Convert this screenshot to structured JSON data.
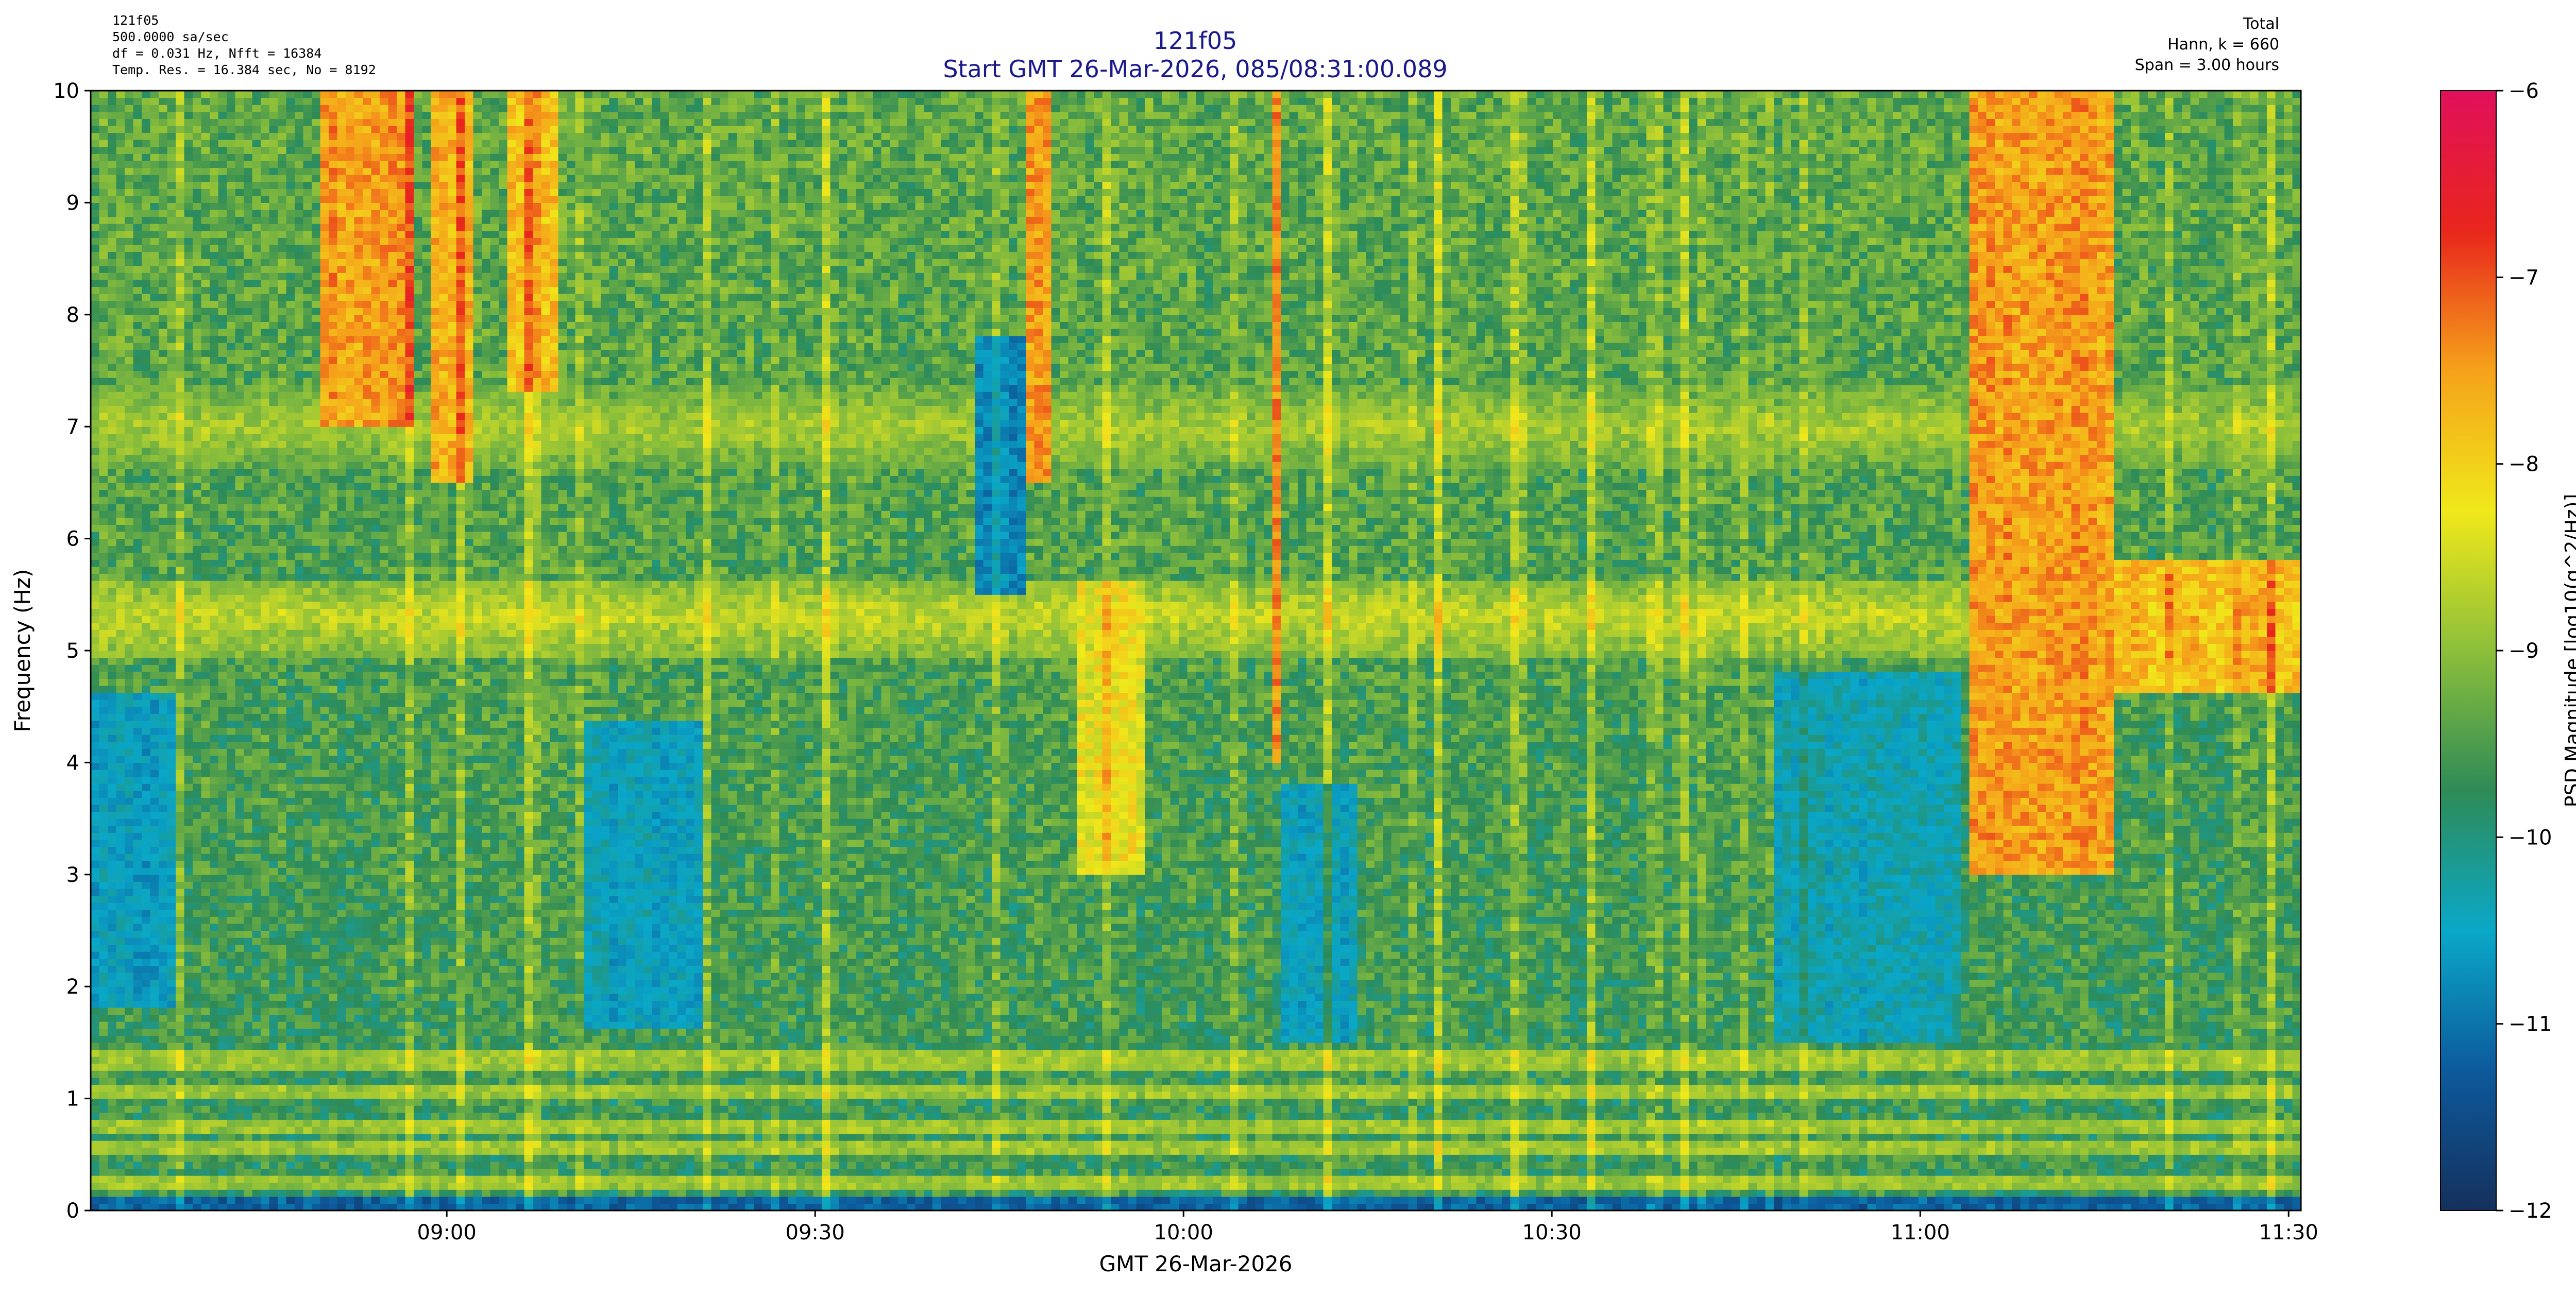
{
  "header": {
    "left_lines": [
      "121f05",
      "500.0000 sa/sec",
      "df = 0.031 Hz,  Nfft = 16384",
      "Temp. Res. = 16.384 sec, No = 8192"
    ],
    "right_lines": [
      "Total",
      "Hann, k = 660",
      "Span = 3.00 hours"
    ]
  },
  "colors": {
    "title": "#1a1a8c",
    "colormap": [
      "#15305c",
      "#0d5a9c",
      "#0aa8c8",
      "#2e8b57",
      "#8cbf3a",
      "#f0e81a",
      "#f5a21a",
      "#e8261c",
      "#e0105a"
    ]
  },
  "chart_data": {
    "type": "heatmap",
    "title": "121f05",
    "subtitle": "Start GMT 26-Mar-2026, 085/08:31:00.089",
    "xlabel": "GMT 26-Mar-2026",
    "ylabel": "Frequency (Hz)",
    "x_ticks": [
      "09:00",
      "09:30",
      "10:00",
      "10:30",
      "11:00",
      "11:30"
    ],
    "x_tick_minutes_from_0800": [
      60,
      90,
      120,
      150,
      180,
      210
    ],
    "xlim_minutes_from_0800": [
      31.0,
      211.0
    ],
    "y_ticks": [
      0,
      1,
      2,
      3,
      4,
      5,
      6,
      7,
      8,
      9,
      10
    ],
    "ylim": [
      0,
      10
    ],
    "colorbar": {
      "label": "PSD Magnitude [log10(g^2/Hz)]",
      "ticks": [
        -6,
        -7,
        -8,
        -9,
        -10,
        -11,
        -12
      ],
      "range": [
        -12,
        -6
      ]
    },
    "background_level": -9.8,
    "bands": [
      {
        "name": "lines_low",
        "freqs": [
          0.25,
          0.55,
          0.75,
          1.05,
          1.35
        ],
        "level": -9.0
      },
      {
        "name": "band_5hz",
        "center": 5.3,
        "width": 0.35,
        "level": -8.7
      },
      {
        "name": "band_7hz",
        "center": 7.0,
        "width": 0.4,
        "level": -8.9
      }
    ],
    "blobs": [
      {
        "x0": 50,
        "x1": 57,
        "y0": 7.0,
        "y1": 10.0,
        "level": -7.6
      },
      {
        "x0": 59,
        "x1": 62,
        "y0": 6.5,
        "y1": 10.0,
        "level": -7.8
      },
      {
        "x0": 65,
        "x1": 69,
        "y0": 7.3,
        "y1": 10.0,
        "level": -8.0
      },
      {
        "x0": 107,
        "x1": 109,
        "y0": 6.5,
        "y1": 10.0,
        "level": -7.7
      },
      {
        "x0": 111,
        "x1": 117,
        "y0": 3.0,
        "y1": 5.6,
        "level": -8.4
      },
      {
        "x0": 127,
        "x1": 128,
        "y0": 4.0,
        "y1": 10.0,
        "level": -7.4
      },
      {
        "x0": 184,
        "x1": 196,
        "y0": 3.0,
        "y1": 10.0,
        "level": -7.6
      },
      {
        "x0": 196,
        "x1": 211,
        "y0": 4.6,
        "y1": 5.8,
        "level": -7.9
      }
    ],
    "dark_regions": [
      {
        "x0": 31,
        "x1": 38,
        "y0": 1.8,
        "y1": 4.6,
        "level": -10.7
      },
      {
        "x0": 71,
        "x1": 81,
        "y0": 1.6,
        "y1": 4.4,
        "level": -10.6
      },
      {
        "x0": 103,
        "x1": 107,
        "y0": 5.5,
        "y1": 7.8,
        "level": -10.9
      },
      {
        "x0": 128,
        "x1": 134,
        "y0": 1.5,
        "y1": 3.8,
        "level": -10.6
      },
      {
        "x0": 168,
        "x1": 183,
        "y0": 1.5,
        "y1": 4.8,
        "level": -10.5
      },
      {
        "x0": 31,
        "x1": 211,
        "y0": 0.0,
        "y1": 0.12,
        "level": -11.3
      }
    ]
  }
}
